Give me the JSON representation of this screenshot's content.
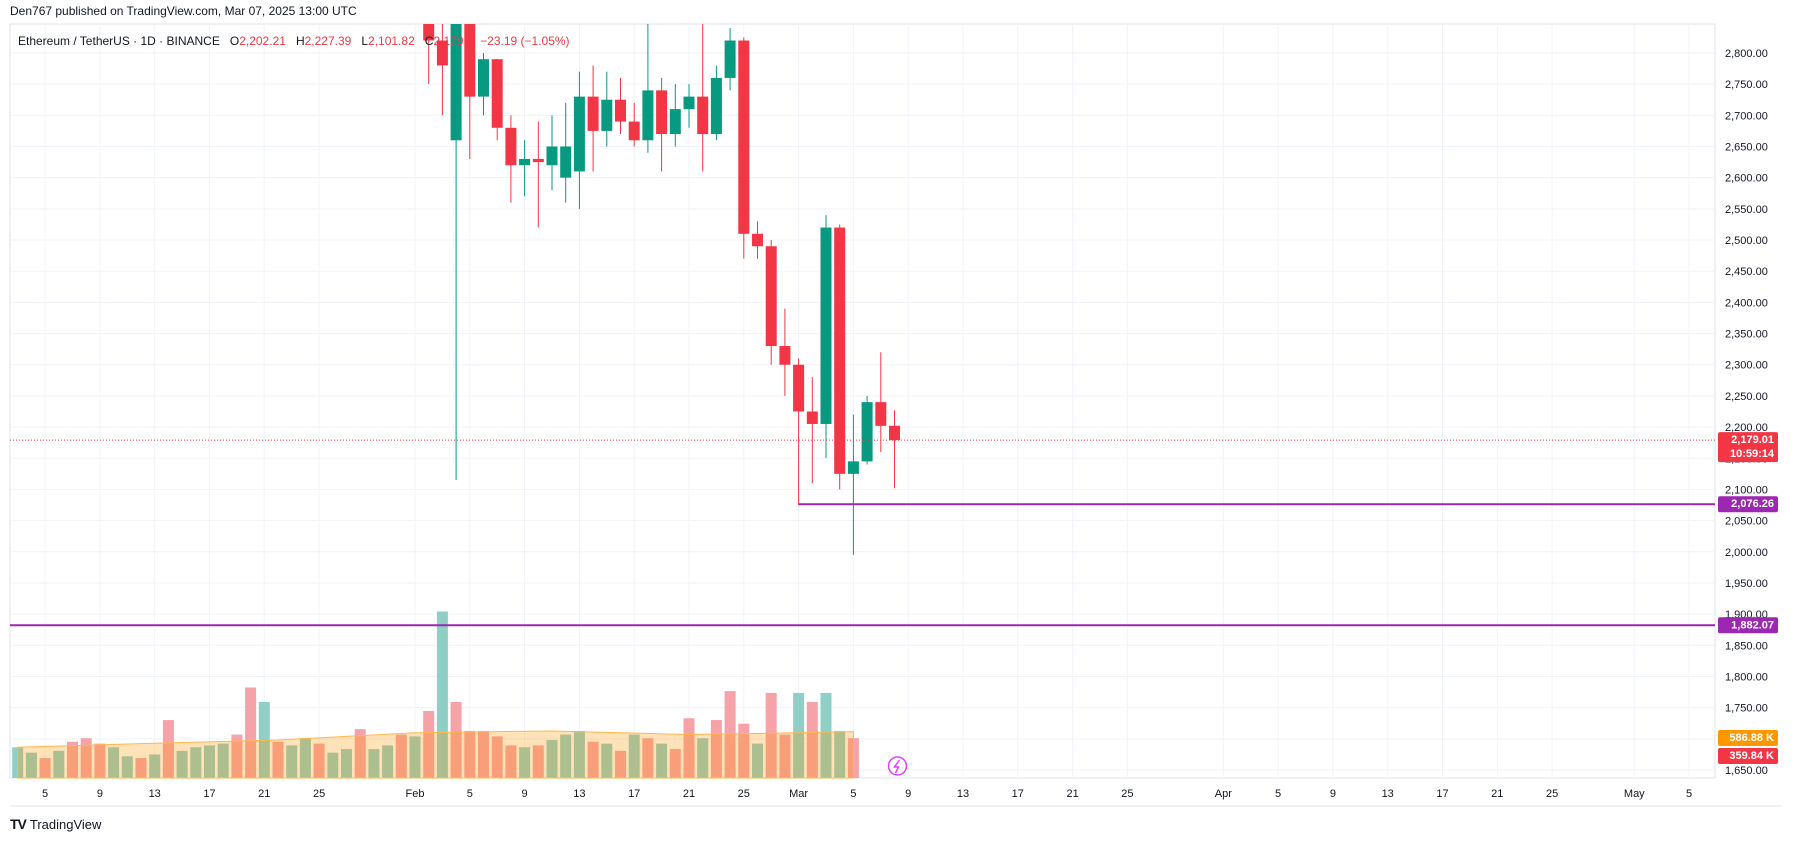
{
  "header": {
    "published": "Den767 published on TradingView.com, Mar 07, 2025 13:00 UTC"
  },
  "symbol": {
    "name": "Ethereum / TetherUS · 1D · BINANCE",
    "o_label": "O",
    "o": "2,202.21",
    "h_label": "H",
    "h": "2,227.39",
    "l_label": "L",
    "l": "2,101.82",
    "c_label": "C",
    "c": "2,179.0",
    "change": "−23.19 (−1.05%)"
  },
  "footer": {
    "brand": "TradingView",
    "logo": "tradingview-logo-icon"
  },
  "colors": {
    "up": "#089981",
    "down": "#f23645",
    "line": "#9c27b0",
    "vol_up": "#8fcfc6",
    "vol_down": "#f5a2a9",
    "vol_ma": "#ff9800"
  },
  "price_tags": {
    "last": "2,179.01",
    "countdown": "10:59:14",
    "level1": "2,076.26",
    "level2": "1,882.07",
    "vol_ma": "586.88 K",
    "vol": "359.84 K"
  },
  "chart_data": {
    "type": "candlestick",
    "symbol": "ETHUSDT",
    "interval": "1D",
    "y_ticks": [
      "2,800.00",
      "2,750.00",
      "2,700.00",
      "2,650.00",
      "2,600.00",
      "2,550.00",
      "2,500.00",
      "2,450.00",
      "2,400.00",
      "2,350.00",
      "2,300.00",
      "2,250.00",
      "2,200.00",
      "2,150.00",
      "2,100.00",
      "2,050.00",
      "2,000.00",
      "1,950.00",
      "1,900.00",
      "1,850.00",
      "1,800.00",
      "1,750.00",
      "1,700.00",
      "1,650.00"
    ],
    "y_range": [
      1640,
      2845
    ],
    "x_ticks": [
      {
        "label": "5",
        "day": -27
      },
      {
        "label": "9",
        "day": -23
      },
      {
        "label": "13",
        "day": -19
      },
      {
        "label": "17",
        "day": -15
      },
      {
        "label": "21",
        "day": -11
      },
      {
        "label": "25",
        "day": -7
      },
      {
        "label": "Feb",
        "day": 0
      },
      {
        "label": "5",
        "day": 4
      },
      {
        "label": "9",
        "day": 8
      },
      {
        "label": "13",
        "day": 12
      },
      {
        "label": "17",
        "day": 16
      },
      {
        "label": "21",
        "day": 20
      },
      {
        "label": "25",
        "day": 24
      },
      {
        "label": "Mar",
        "day": 28
      },
      {
        "label": "5",
        "day": 32
      },
      {
        "label": "9",
        "day": 36
      },
      {
        "label": "13",
        "day": 40
      },
      {
        "label": "17",
        "day": 44
      },
      {
        "label": "21",
        "day": 48
      },
      {
        "label": "25",
        "day": 52
      },
      {
        "label": "Apr",
        "day": 59
      },
      {
        "label": "5",
        "day": 63
      },
      {
        "label": "9",
        "day": 67
      },
      {
        "label": "13",
        "day": 71
      },
      {
        "label": "17",
        "day": 75
      },
      {
        "label": "21",
        "day": 79
      },
      {
        "label": "25",
        "day": 83
      },
      {
        "label": "May",
        "day": 89
      },
      {
        "label": "5",
        "day": 93
      }
    ],
    "candles": [
      {
        "day": 1,
        "o": 2850,
        "h": 2860,
        "l": 2750,
        "c": 2820
      },
      {
        "day": 2,
        "o": 2820,
        "h": 2850,
        "l": 2700,
        "c": 2780
      },
      {
        "day": 3,
        "o": 2660,
        "h": 2860,
        "l": 2115,
        "c": 2850
      },
      {
        "day": 4,
        "o": 2850,
        "h": 2870,
        "l": 2630,
        "c": 2730
      },
      {
        "day": 5,
        "o": 2730,
        "h": 2800,
        "l": 2700,
        "c": 2790
      },
      {
        "day": 6,
        "o": 2790,
        "h": 2790,
        "l": 2660,
        "c": 2680
      },
      {
        "day": 7,
        "o": 2680,
        "h": 2700,
        "l": 2560,
        "c": 2620
      },
      {
        "day": 8,
        "o": 2620,
        "h": 2660,
        "l": 2570,
        "c": 2630
      },
      {
        "day": 9,
        "o": 2630,
        "h": 2690,
        "l": 2520,
        "c": 2625
      },
      {
        "day": 10,
        "o": 2620,
        "h": 2700,
        "l": 2580,
        "c": 2650
      },
      {
        "day": 11,
        "o": 2600,
        "h": 2720,
        "l": 2560,
        "c": 2650
      },
      {
        "day": 12,
        "o": 2610,
        "h": 2770,
        "l": 2550,
        "c": 2730
      },
      {
        "day": 13,
        "o": 2730,
        "h": 2780,
        "l": 2610,
        "c": 2675
      },
      {
        "day": 14,
        "o": 2675,
        "h": 2770,
        "l": 2650,
        "c": 2725
      },
      {
        "day": 15,
        "o": 2725,
        "h": 2760,
        "l": 2670,
        "c": 2690
      },
      {
        "day": 16,
        "o": 2690,
        "h": 2720,
        "l": 2650,
        "c": 2660
      },
      {
        "day": 17,
        "o": 2660,
        "h": 2860,
        "l": 2640,
        "c": 2740
      },
      {
        "day": 18,
        "o": 2740,
        "h": 2760,
        "l": 2610,
        "c": 2670
      },
      {
        "day": 19,
        "o": 2670,
        "h": 2750,
        "l": 2650,
        "c": 2710
      },
      {
        "day": 20,
        "o": 2710,
        "h": 2750,
        "l": 2680,
        "c": 2730
      },
      {
        "day": 21,
        "o": 2730,
        "h": 2860,
        "l": 2610,
        "c": 2670
      },
      {
        "day": 22,
        "o": 2670,
        "h": 2780,
        "l": 2660,
        "c": 2760
      },
      {
        "day": 23,
        "o": 2760,
        "h": 2840,
        "l": 2740,
        "c": 2820
      },
      {
        "day": 24,
        "o": 2820,
        "h": 2825,
        "l": 2470,
        "c": 2510
      },
      {
        "day": 25,
        "o": 2510,
        "h": 2530,
        "l": 2470,
        "c": 2490
      },
      {
        "day": 26,
        "o": 2490,
        "h": 2500,
        "l": 2300,
        "c": 2330
      },
      {
        "day": 27,
        "o": 2330,
        "h": 2390,
        "l": 2250,
        "c": 2300
      },
      {
        "day": 28,
        "o": 2300,
        "h": 2310,
        "l": 2075,
        "c": 2225
      },
      {
        "day": 29,
        "o": 2225,
        "h": 2280,
        "l": 2110,
        "c": 2205
      },
      {
        "day": 30,
        "o": 2205,
        "h": 2540,
        "l": 2150,
        "c": 2520
      },
      {
        "day": 31,
        "o": 2520,
        "h": 2525,
        "l": 2100,
        "c": 2125
      },
      {
        "day": 32,
        "o": 2125,
        "h": 2220,
        "l": 1995,
        "c": 2145
      },
      {
        "day": 33,
        "o": 2145,
        "h": 2250,
        "l": 2140,
        "c": 2240
      },
      {
        "day": 34,
        "o": 2240,
        "h": 2320,
        "l": 2160,
        "c": 2202
      },
      {
        "day": 35,
        "o": 2202,
        "h": 2227,
        "l": 2102,
        "c": 2179
      }
    ],
    "volume_max": 1000,
    "volume": [
      {
        "day": -29,
        "v": 85,
        "up": true
      },
      {
        "day": -28,
        "v": 70,
        "up": true
      },
      {
        "day": -27,
        "v": 55,
        "up": false
      },
      {
        "day": -26,
        "v": 75,
        "up": true
      },
      {
        "day": -25,
        "v": 100,
        "up": false
      },
      {
        "day": -24,
        "v": 110,
        "up": false
      },
      {
        "day": -23,
        "v": 95,
        "up": false
      },
      {
        "day": -22,
        "v": 85,
        "up": true
      },
      {
        "day": -21,
        "v": 60,
        "up": true
      },
      {
        "day": -20,
        "v": 55,
        "up": false
      },
      {
        "day": -19,
        "v": 65,
        "up": true
      },
      {
        "day": -18,
        "v": 160,
        "up": false
      },
      {
        "day": -17,
        "v": 75,
        "up": true
      },
      {
        "day": -16,
        "v": 85,
        "up": true
      },
      {
        "day": -15,
        "v": 90,
        "up": true
      },
      {
        "day": -14,
        "v": 95,
        "up": true
      },
      {
        "day": -13,
        "v": 120,
        "up": false
      },
      {
        "day": -12,
        "v": 250,
        "up": false
      },
      {
        "day": -11,
        "v": 210,
        "up": true
      },
      {
        "day": -10,
        "v": 100,
        "up": false
      },
      {
        "day": -9,
        "v": 90,
        "up": true
      },
      {
        "day": -8,
        "v": 110,
        "up": true
      },
      {
        "day": -7,
        "v": 95,
        "up": false
      },
      {
        "day": -6,
        "v": 70,
        "up": true
      },
      {
        "day": -5,
        "v": 80,
        "up": true
      },
      {
        "day": -4,
        "v": 135,
        "up": false
      },
      {
        "day": -3,
        "v": 80,
        "up": true
      },
      {
        "day": -2,
        "v": 90,
        "up": true
      },
      {
        "day": -1,
        "v": 120,
        "up": false
      },
      {
        "day": 0,
        "v": 115,
        "up": true
      },
      {
        "day": 1,
        "v": 185,
        "up": false
      },
      {
        "day": 2,
        "v": 460,
        "up": true
      },
      {
        "day": 3,
        "v": 210,
        "up": false
      },
      {
        "day": 4,
        "v": 130,
        "up": false
      },
      {
        "day": 5,
        "v": 130,
        "up": false
      },
      {
        "day": 6,
        "v": 115,
        "up": false
      },
      {
        "day": 7,
        "v": 90,
        "up": false
      },
      {
        "day": 8,
        "v": 85,
        "up": true
      },
      {
        "day": 9,
        "v": 90,
        "up": false
      },
      {
        "day": 10,
        "v": 105,
        "up": true
      },
      {
        "day": 11,
        "v": 120,
        "up": true
      },
      {
        "day": 12,
        "v": 130,
        "up": true
      },
      {
        "day": 13,
        "v": 100,
        "up": false
      },
      {
        "day": 14,
        "v": 95,
        "up": true
      },
      {
        "day": 15,
        "v": 75,
        "up": false
      },
      {
        "day": 16,
        "v": 120,
        "up": true
      },
      {
        "day": 17,
        "v": 110,
        "up": false
      },
      {
        "day": 18,
        "v": 95,
        "up": true
      },
      {
        "day": 19,
        "v": 80,
        "up": false
      },
      {
        "day": 20,
        "v": 165,
        "up": false
      },
      {
        "day": 21,
        "v": 110,
        "up": true
      },
      {
        "day": 22,
        "v": 160,
        "up": false
      },
      {
        "day": 23,
        "v": 240,
        "up": false
      },
      {
        "day": 24,
        "v": 150,
        "up": false
      },
      {
        "day": 25,
        "v": 95,
        "up": true
      },
      {
        "day": 26,
        "v": 235,
        "up": false
      },
      {
        "day": 27,
        "v": 120,
        "up": false
      },
      {
        "day": 28,
        "v": 235,
        "up": true
      },
      {
        "day": 29,
        "v": 210,
        "up": false
      },
      {
        "day": 30,
        "v": 235,
        "up": true
      },
      {
        "day": 31,
        "v": 130,
        "up": true
      },
      {
        "day": 32,
        "v": 110,
        "up": false
      }
    ],
    "volume_ma": [
      {
        "day": -29,
        "v": 85
      },
      {
        "day": -20,
        "v": 95
      },
      {
        "day": -10,
        "v": 105
      },
      {
        "day": 0,
        "v": 125
      },
      {
        "day": 10,
        "v": 130
      },
      {
        "day": 20,
        "v": 120
      },
      {
        "day": 28,
        "v": 125
      },
      {
        "day": 32,
        "v": 128
      }
    ],
    "levels": [
      {
        "value": 2076.26,
        "from_day": 28
      },
      {
        "value": 1882.07,
        "from_day": -31
      }
    ],
    "last_price": 2179.01,
    "grid": true,
    "legend": "top-left"
  }
}
